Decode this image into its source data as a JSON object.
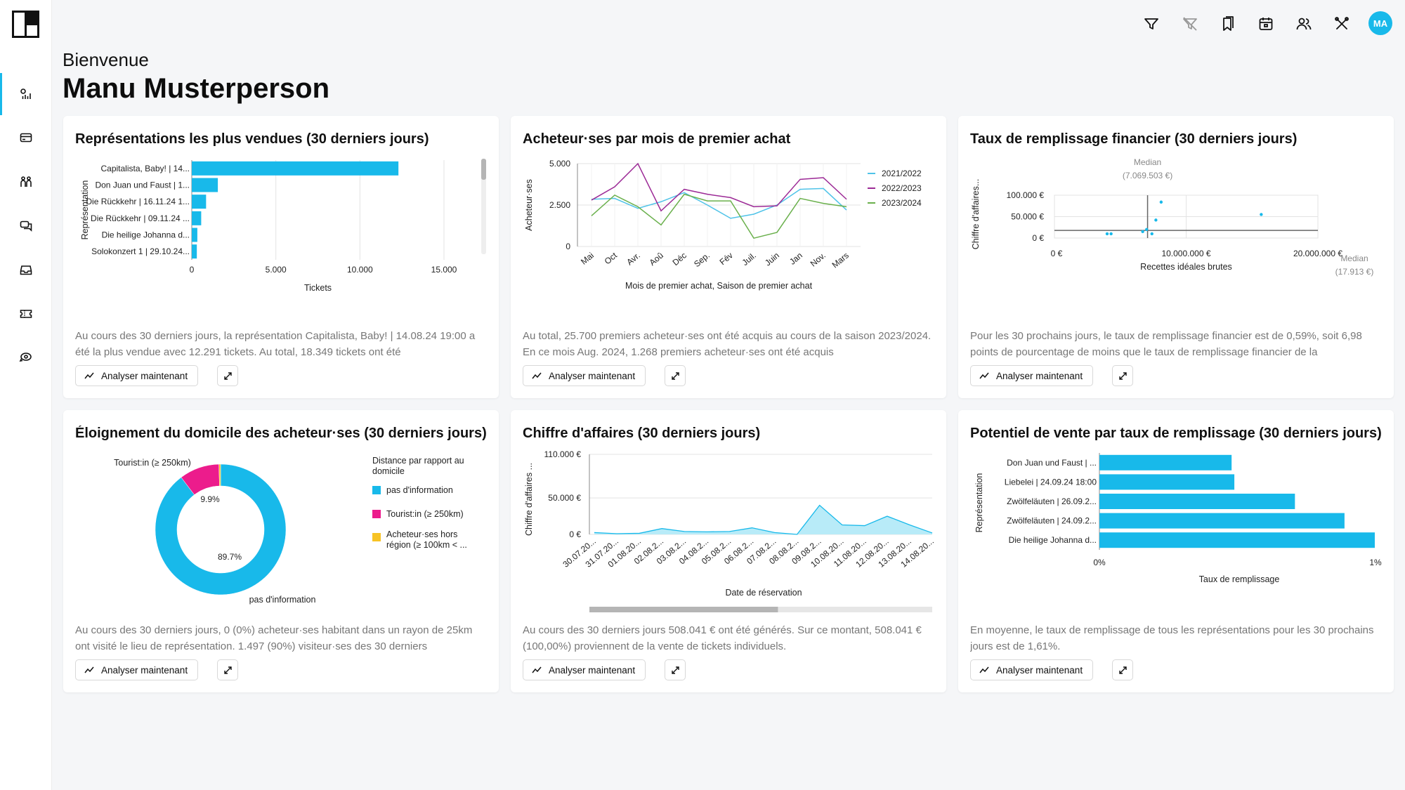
{
  "header": {
    "welcome": "Bienvenue",
    "user_name": "Manu Musterperson",
    "avatar_initials": "MA"
  },
  "topbar": {
    "icons": [
      "filter-icon",
      "filter-off-icon",
      "bookmarks-icon",
      "calendar-icon",
      "users-icon",
      "tools-icon"
    ]
  },
  "sidebar": {
    "items": [
      "dashboard-icon",
      "card-icon",
      "people-icon",
      "chat-icon",
      "inbox-icon",
      "ticket-icon",
      "rotate-icon"
    ]
  },
  "accent_color": "#18b9ea",
  "common": {
    "analyze_label": "Analyser maintenant"
  },
  "cards": [
    {
      "title": "Représentations les plus vendues (30 derniers jours)",
      "text": "Au cours des 30 derniers jours, la représentation Capitalista, Baby! | 14.08.24 19:00 a été la plus vendue avec 12.291 tickets. Au total, 18.349 tickets ont été",
      "chart_data": {
        "type": "bar",
        "orientation": "horizontal",
        "categories": [
          "Capitalista, Baby! | 14...",
          "Don Juan und Faust | 1...",
          "Die Rückkehr | 16.11.24 1...",
          "Die Rückkehr | 09.11.24 ...",
          "Die heilige Johanna d...",
          "Solokonzert 1 | 29.10.24..."
        ],
        "values": [
          12291,
          1550,
          850,
          560,
          330,
          300
        ],
        "xlabel": "Tickets",
        "ylabel": "Représentation",
        "xlim": [
          0,
          15000
        ],
        "xticks": [
          "0",
          "5.000",
          "10.000",
          "15.000"
        ],
        "color": "#18b9ea"
      }
    },
    {
      "title": "Acheteur·ses par mois de premier achat",
      "text": "Au total, 25.700 premiers acheteur·ses ont été acquis au cours de la saison 2023/2024. En ce mois Aug. 2024, 1.268 premiers acheteur·ses ont été acquis",
      "chart_data": {
        "type": "line",
        "categories": [
          "Mai",
          "Oct",
          "Avr.",
          "Aoû",
          "Déc",
          "Sep.",
          "Fév",
          "Juil.",
          "Juin",
          "Jan",
          "Nov.",
          "Mars"
        ],
        "series": [
          {
            "name": "2021/2022",
            "color": "#4fc3e8",
            "values": [
              2850,
              2900,
              2300,
              2700,
              3250,
              2500,
              1700,
              1950,
              2500,
              3450,
              3500,
              2200
            ]
          },
          {
            "name": "2022/2023",
            "color": "#9c2a96",
            "values": [
              2800,
              3600,
              5000,
              2150,
              3450,
              3150,
              2950,
              2400,
              2450,
              4050,
              4150,
              2850
            ]
          },
          {
            "name": "2023/2024",
            "color": "#6ab04c",
            "values": [
              1850,
              3100,
              2400,
              1300,
              3150,
              2750,
              2750,
              500,
              850,
              2900,
              2600,
              2400
            ]
          }
        ],
        "xlabel": "Mois de premier achat, Saison de premier achat",
        "ylabel": "Acheteur·ses",
        "ylim": [
          0,
          5000
        ],
        "yticks": [
          "0",
          "2.500",
          "5.000"
        ]
      }
    },
    {
      "title": "Taux de remplissage financier (30 derniers jours)",
      "text": "Pour les 30 prochains jours, le taux de remplissage financier est de 0,59%, soit 6,98 points de pourcentage de moins que le taux de remplissage financier de la",
      "chart_data": {
        "type": "scatter",
        "points": [
          [
            4000000,
            10000
          ],
          [
            4300000,
            10000
          ],
          [
            6700000,
            15000
          ],
          [
            7000000,
            20000
          ],
          [
            7400000,
            10000
          ],
          [
            7700000,
            42000
          ],
          [
            8100000,
            84000
          ],
          [
            15700000,
            55000
          ]
        ],
        "median_x": 7069503,
        "median_y": 17913,
        "median_label": "Median",
        "median_x_label": "(7.069.503 €)",
        "median_y_label": "(17.913 €)",
        "xlabel": "Recettes idéales brutes",
        "ylabel": "Chiffre d'affaires...",
        "xlim": [
          0,
          20000000
        ],
        "ylim": [
          0,
          100000
        ],
        "xticks": [
          "0  €",
          "10.000.000  €",
          "20.000.000  €"
        ],
        "yticks": [
          "0  €",
          "50.000  €",
          "100.000  €"
        ],
        "color": "#18b9ea"
      }
    },
    {
      "title": "Éloignement du domicile des acheteur·ses (30 derniers jours)",
      "text": "Au cours des 30 derniers jours, 0 (0%) acheteur·ses habitant dans un rayon de 25km ont visité le lieu de représentation. 1.497 (90%) visiteur·ses des 30 derniers",
      "chart_data": {
        "type": "pie",
        "donut": true,
        "legend_title": "Distance par rapport au domicile",
        "slices": [
          {
            "label": "pas d'information",
            "value": 89.7,
            "color": "#18b9ea"
          },
          {
            "label": "Tourist:in  (≥ 250km)",
            "value": 9.9,
            "color": "#ec1c8c"
          },
          {
            "label": "Acheteur·ses hors région (≥ 100km < ...",
            "value": 0.4,
            "color": "#f7c325"
          }
        ],
        "data_labels": [
          "89.7%",
          "9.9%"
        ],
        "outer_labels": [
          "Tourist:in  (≥ 250km)",
          "pas d'information"
        ]
      }
    },
    {
      "title": "Chiffre d'affaires (30 derniers jours)",
      "text": "Au cours des 30 derniers jours 508.041 € ont été générés. Sur ce montant, 508.041 € (100,00%) proviennent de la vente de tickets individuels.",
      "chart_data": {
        "type": "area",
        "categories": [
          "30.07.20...",
          "31.07.20...",
          "01.08.20...",
          "02.08.2...",
          "03.08.2...",
          "04.08.2...",
          "05.08.2...",
          "06.08.2...",
          "07.08.2...",
          "08.08.2...",
          "09.08.2...",
          "10.08.20...",
          "11.08.20...",
          "12.08.20...",
          "13.08.20...",
          "14.08.20..."
        ],
        "values": [
          2500,
          1000,
          1500,
          8000,
          4000,
          3500,
          4000,
          9000,
          2500,
          0,
          40000,
          13000,
          12000,
          25000,
          13000,
          2000
        ],
        "xlabel": "Date de réservation",
        "ylabel": "Chiffre d'affaires ...",
        "ylim": [
          0,
          110000
        ],
        "yticks": [
          "0  €",
          "50.000  €",
          "110.000  €"
        ],
        "color": "#18b9ea",
        "fill": "#b8ebf8",
        "scroll_position": 0.55
      }
    },
    {
      "title": "Potentiel de vente par taux de remplissage (30 derniers jours)",
      "text": "En moyenne, le taux de remplissage de tous les représentations pour les 30 prochains jours est de 1,61%.",
      "chart_data": {
        "type": "bar",
        "orientation": "horizontal",
        "categories": [
          "Don Juan und Faust | ...",
          "Liebelei | 24.09.24 18:00",
          "Zwölfeläuten | 26.09.2...",
          "Zwölfeläuten | 24.09.2...",
          "Die heilige Johanna d..."
        ],
        "values": [
          0.48,
          0.49,
          0.71,
          0.89,
          1.0
        ],
        "xlabel": "Taux de remplissage",
        "ylabel": "Représentation",
        "xlim": [
          0,
          1
        ],
        "xticks": [
          "0%",
          "1%"
        ],
        "color": "#18b9ea"
      }
    }
  ]
}
